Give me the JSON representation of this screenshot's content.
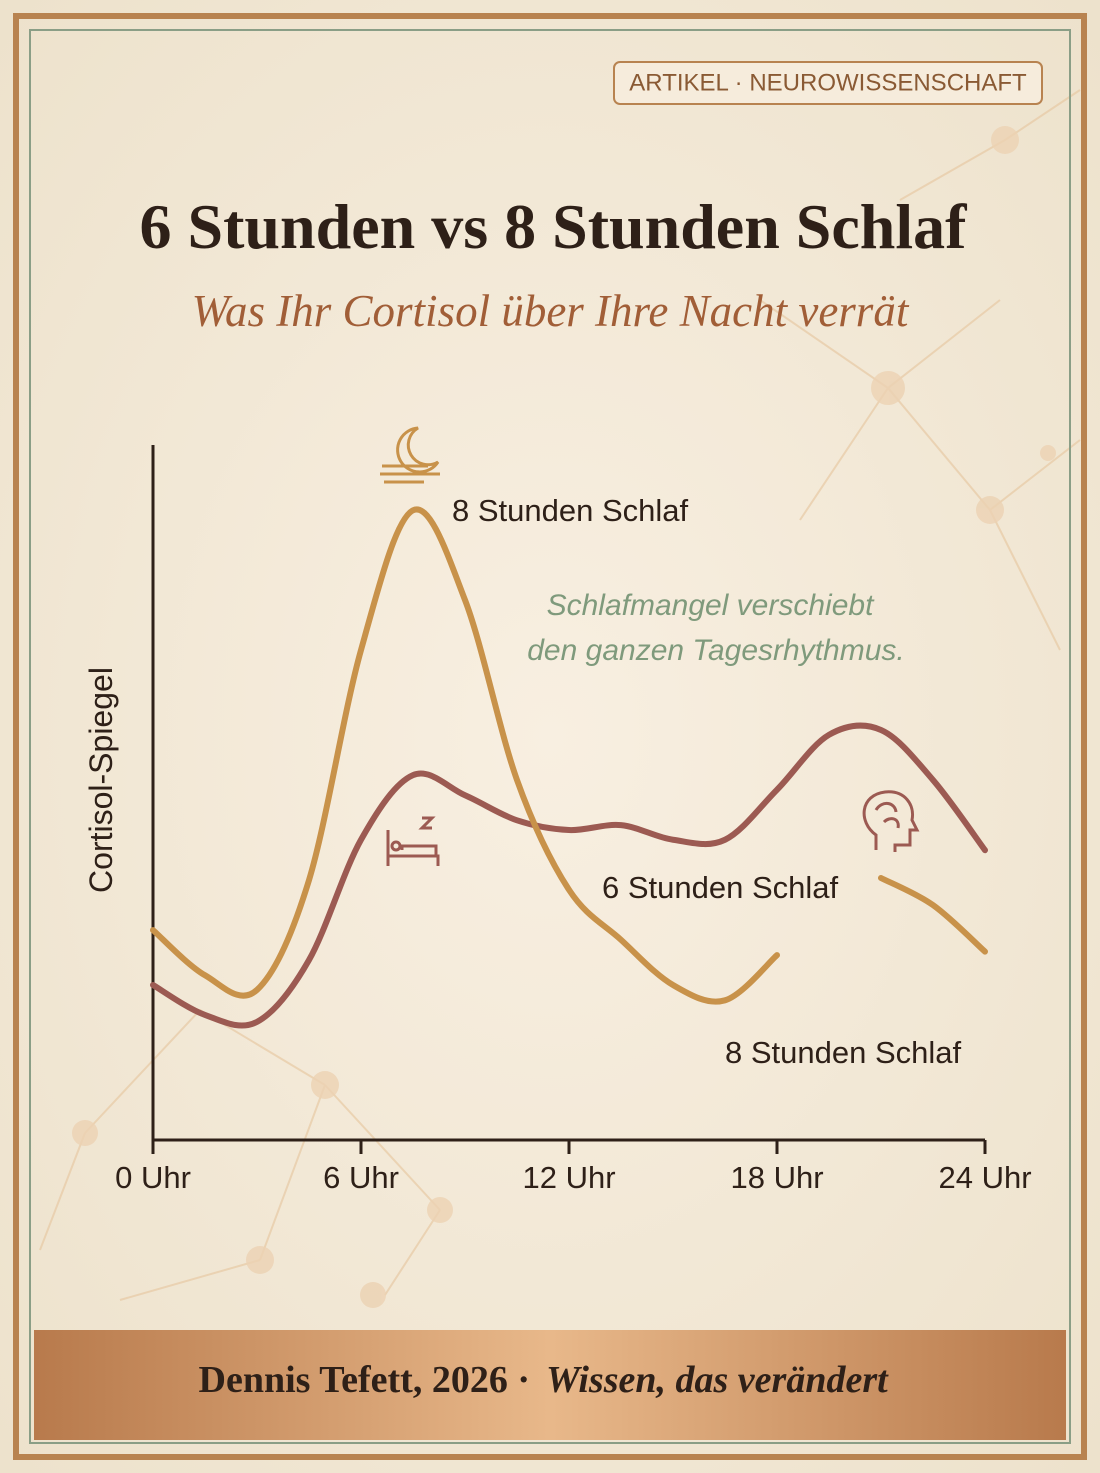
{
  "tag": "ARTIKEL · NEUROWISSENSCHAFT",
  "footer": {
    "author": "Dennis Tefett, 2026 ·",
    "tagline": "Wissen, das verändert"
  },
  "chart_data": {
    "type": "line",
    "title": "6 Stunden vs 8 Stunden Schlaf",
    "subtitle": "Was Ihr Cortisol über Ihre Nacht verrät",
    "y_label": "Cortisol-Spiegel",
    "annotation": [
      "Schlafmangel verschiebt",
      "den ganzen Tagesrhythmus."
    ],
    "x": [
      0,
      1.5,
      3,
      4.5,
      6,
      7.5,
      9,
      10.5,
      12,
      13.5,
      15,
      16.5,
      18,
      19.5,
      21,
      22.5,
      24
    ],
    "xlim": [
      0,
      24
    ],
    "xticks": [
      {
        "value": 0,
        "label": "0 Uhr"
      },
      {
        "value": 6,
        "label": "6 Uhr"
      },
      {
        "value": 12,
        "label": "12 Uhr"
      },
      {
        "value": 18,
        "label": "18 Uhr"
      },
      {
        "value": 24,
        "label": "24 Uhr"
      }
    ],
    "ylim": [
      0,
      100
    ],
    "series": [
      {
        "name": "8 Stunden Schlaf",
        "color": "#c8924a",
        "values": [
          30.2,
          23.7,
          21.6,
          37.4,
          70.5,
          90.6,
          77.7,
          51.8,
          36.0,
          28.8,
          22.3,
          20.1,
          26.6,
          null,
          37.7,
          33.8,
          27.1
        ]
      },
      {
        "name": "6 Stunden Schlaf",
        "color": "#9c5a52",
        "values": [
          22.3,
          18.0,
          17.0,
          25.9,
          43.2,
          52.5,
          49.6,
          46.0,
          44.6,
          45.3,
          43.2,
          43.2,
          50.4,
          58.3,
          59.0,
          51.8,
          41.7
        ]
      }
    ]
  }
}
